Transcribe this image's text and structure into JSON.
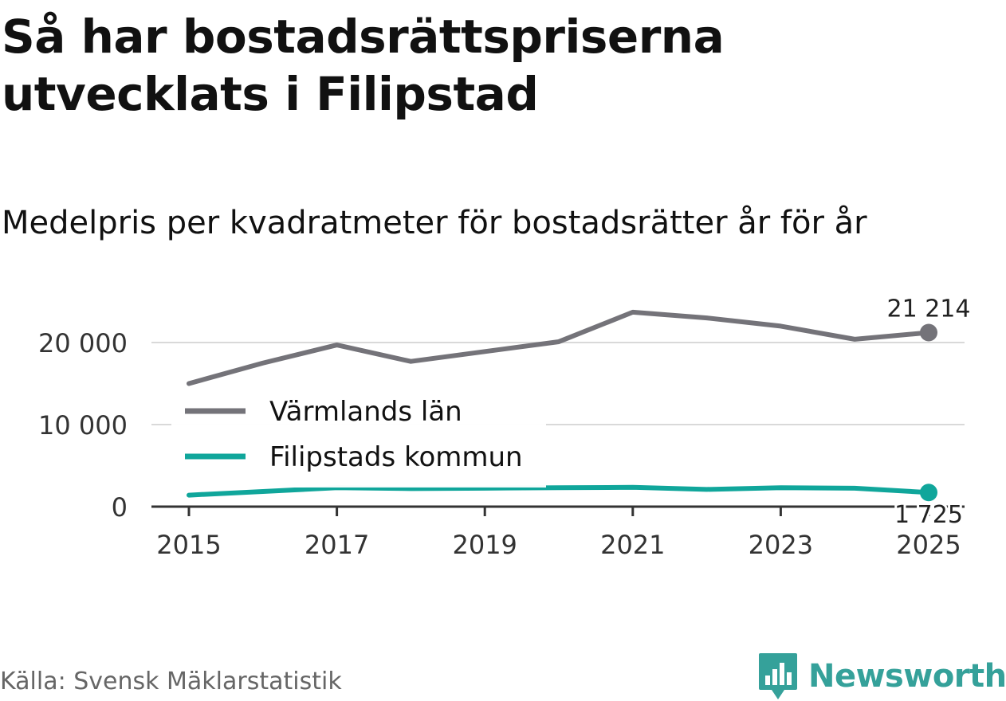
{
  "title": "Så har bostadsrättspriserna utvecklats i Filipstad",
  "subtitle": "Medelpris per kvadratmeter för bostadsrätter år för år",
  "source": "Källa: Svensk Mäklarstatistik",
  "brand": {
    "name": "Newsworthy",
    "icon": "bar-chart-speech-bubble-icon",
    "color": "#35a19a"
  },
  "chart_data": {
    "type": "line",
    "x": [
      2015,
      2016,
      2017,
      2018,
      2019,
      2020,
      2021,
      2022,
      2023,
      2024,
      2025
    ],
    "x_ticks": [
      "2015",
      "2017",
      "2019",
      "2021",
      "2023",
      "2025"
    ],
    "y_ticks": [
      "0",
      "10 000",
      "20 000"
    ],
    "ylim": [
      0,
      25000
    ],
    "grid": true,
    "legend_position": "left-center",
    "series": [
      {
        "name": "Värmlands län",
        "color": "#747379",
        "values": [
          15000,
          17500,
          19700,
          17700,
          18900,
          20100,
          23700,
          23000,
          22000,
          20400,
          21214
        ],
        "end_label": "21 214"
      },
      {
        "name": "Filipstads kommun",
        "color": "#10a69b",
        "values": [
          1400,
          1850,
          2300,
          2200,
          2250,
          2300,
          2350,
          2100,
          2300,
          2250,
          1725
        ],
        "end_label": "1 725"
      }
    ]
  }
}
